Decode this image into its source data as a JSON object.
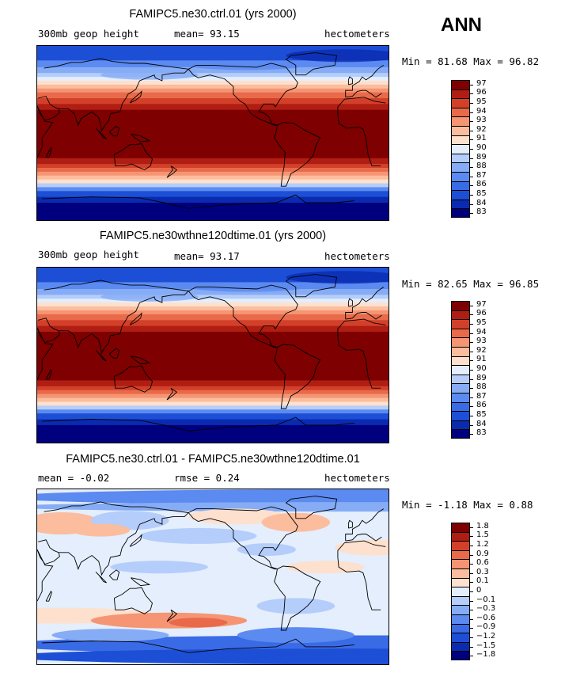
{
  "season": "ANN",
  "panels": [
    {
      "title": "FAMIPC5.ne30.ctrl.01 (yrs 2000)",
      "left_label": "300mb geop height",
      "mid_label": "mean=  93.15",
      "units": "hectometers",
      "minmax": "Min =  81.68 Max =  96.82",
      "kind": "field",
      "colorbar_levels": [
        "97",
        "96",
        "95",
        "94",
        "93",
        "92",
        "91",
        "90",
        "89",
        "88",
        "87",
        "86",
        "85",
        "84",
        "83"
      ]
    },
    {
      "title": "FAMIPC5.ne30wthne120dtime.01 (yrs 2000)",
      "left_label": "300mb geop height",
      "mid_label": "mean=  93.17",
      "units": "hectometers",
      "minmax": "Min =  82.65 Max =  96.85",
      "kind": "field",
      "colorbar_levels": [
        "97",
        "96",
        "95",
        "94",
        "93",
        "92",
        "91",
        "90",
        "89",
        "88",
        "87",
        "86",
        "85",
        "84",
        "83"
      ]
    },
    {
      "title": "FAMIPC5.ne30.ctrl.01 - FAMIPC5.ne30wthne120dtime.01",
      "left_label": "mean =   -0.02",
      "mid_label": "rmse =    0.24",
      "units": "hectometers",
      "minmax": "Min =  -1.18 Max =   0.88",
      "kind": "diff",
      "colorbar_levels": [
        "1.8",
        "1.5",
        "1.2",
        "0.9",
        "0.6",
        "0.3",
        "0.1",
        "0",
        "−0.1",
        "−0.3",
        "−0.6",
        "−0.9",
        "−1.2",
        "−1.5",
        "−1.8"
      ]
    }
  ],
  "colors": {
    "palette": [
      "#00007f",
      "#0a2bb0",
      "#1d4fd6",
      "#3a6be6",
      "#5b8af0",
      "#86acf5",
      "#b4cdfa",
      "#e4eefc",
      "#fde0cd",
      "#fbbd9d",
      "#f59573",
      "#e86a4a",
      "#d3402a",
      "#b01d12",
      "#7f0000"
    ]
  },
  "chart_data": [
    {
      "type": "heatmap",
      "title": "FAMIPC5.ne30.ctrl.01 (yrs 2000)",
      "variable": "300mb geop height",
      "units": "hectometers",
      "mean": 93.15,
      "min": 81.68,
      "max": 96.82,
      "levels": [
        83,
        84,
        85,
        86,
        87,
        88,
        89,
        90,
        91,
        92,
        93,
        94,
        95,
        96,
        97
      ]
    },
    {
      "type": "heatmap",
      "title": "FAMIPC5.ne30wthne120dtime.01 (yrs 2000)",
      "variable": "300mb geop height",
      "units": "hectometers",
      "mean": 93.17,
      "min": 82.65,
      "max": 96.85,
      "levels": [
        83,
        84,
        85,
        86,
        87,
        88,
        89,
        90,
        91,
        92,
        93,
        94,
        95,
        96,
        97
      ]
    },
    {
      "type": "heatmap",
      "title": "FAMIPC5.ne30.ctrl.01 - FAMIPC5.ne30wthne120dtime.01",
      "units": "hectometers",
      "mean": -0.02,
      "rmse": 0.24,
      "min": -1.18,
      "max": 0.88,
      "levels": [
        -1.8,
        -1.5,
        -1.2,
        -0.9,
        -0.6,
        -0.3,
        -0.1,
        0,
        0.1,
        0.3,
        0.6,
        0.9,
        1.2,
        1.5,
        1.8
      ]
    }
  ]
}
